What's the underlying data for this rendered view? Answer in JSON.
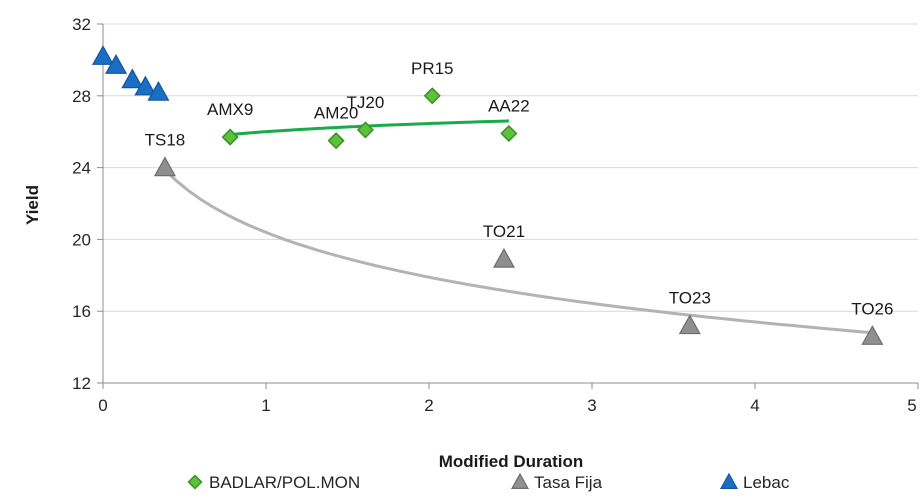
{
  "chart_data": {
    "type": "scatter",
    "xlabel": "Modified Duration",
    "ylabel": "Yield",
    "xlim": [
      0,
      5
    ],
    "ylim": [
      12,
      32
    ],
    "x_ticks": [
      0,
      1,
      2,
      3,
      4,
      5
    ],
    "y_ticks": [
      12,
      16,
      20,
      24,
      28,
      32
    ],
    "grid": "horizontal",
    "legend": "bottom",
    "series": [
      {
        "name": "BADLAR/POL.MON",
        "marker": "diamond",
        "color": "#5cc23a",
        "edge_color": "#3a8f26",
        "points": [
          {
            "x": 0.78,
            "y": 25.7,
            "label": "AMX9"
          },
          {
            "x": 1.43,
            "y": 25.5,
            "label": "AM20"
          },
          {
            "x": 1.61,
            "y": 26.1,
            "label": "TJ20"
          },
          {
            "x": 2.02,
            "y": 28.0,
            "label": "PR15"
          },
          {
            "x": 2.49,
            "y": 25.9,
            "label": "AA22"
          }
        ],
        "trendline": {
          "type": "power",
          "color": "#1aaa4b",
          "x_from": 0.78,
          "x_to": 2.49,
          "a": 26.0,
          "b": 0.025
        }
      },
      {
        "name": "Tasa Fija",
        "marker": "triangle",
        "color": "#8f8f8f",
        "edge_color": "#6d6d6d",
        "points": [
          {
            "x": 0.38,
            "y": 24.0,
            "label": "TS18"
          },
          {
            "x": 2.46,
            "y": 18.9,
            "label": "TO21"
          },
          {
            "x": 3.6,
            "y": 15.2,
            "label": "TO23"
          },
          {
            "x": 4.72,
            "y": 14.6,
            "label": "TO26"
          }
        ],
        "trendline": {
          "type": "log",
          "color": "#b3b3b3",
          "x_from": 0.38,
          "x_to": 4.72,
          "a": 20.39,
          "b": -3.6
        }
      },
      {
        "name": "Lebac",
        "marker": "triangle",
        "color": "#1a6fc4",
        "edge_color": "#14559a",
        "points": [
          {
            "x": 0.0,
            "y": 30.2
          },
          {
            "x": 0.08,
            "y": 29.7
          },
          {
            "x": 0.18,
            "y": 28.9
          },
          {
            "x": 0.26,
            "y": 28.5
          },
          {
            "x": 0.34,
            "y": 28.2
          }
        ]
      }
    ]
  }
}
